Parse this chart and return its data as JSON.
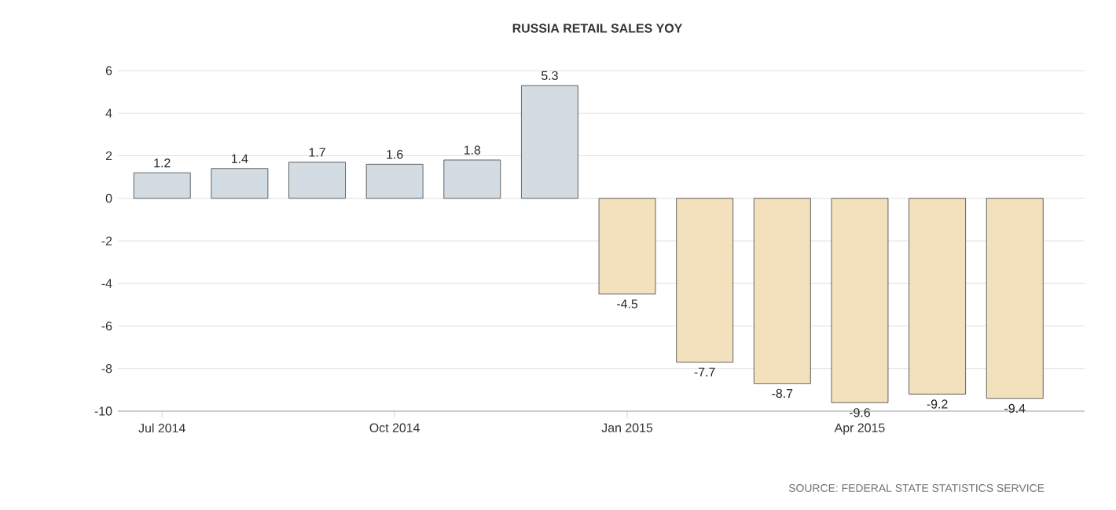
{
  "chart_data": {
    "type": "bar",
    "title": "RUSSIA RETAIL SALES YOY",
    "categories": [
      "Jul 2014",
      null,
      null,
      "Oct 2014",
      null,
      null,
      "Jan 2015",
      null,
      null,
      "Apr 2015",
      null,
      null
    ],
    "values": [
      1.2,
      1.4,
      1.7,
      1.6,
      1.8,
      5.3,
      -4.5,
      -7.7,
      -8.7,
      -9.6,
      -9.2,
      -9.4
    ],
    "colors": [
      "#d3dbe3",
      "#d3dbe3",
      "#d3dbe3",
      "#d3dbe3",
      "#d3dbe3",
      "#d3dbe3",
      "#f3e0bd",
      "#f3e0bd",
      "#f3e0bd",
      "#f3e0bd",
      "#f3e0bd",
      "#f3e0bd"
    ],
    "ylim": [
      -10,
      6
    ],
    "yticks": [
      -10,
      -8,
      -6,
      -4,
      -2,
      0,
      2,
      4,
      6
    ],
    "grid": "y",
    "value_labels": [
      "1.2",
      "1.4",
      "1.7",
      "1.6",
      "1.8",
      "5.3",
      "-4.5",
      "-7.7",
      "-8.7",
      "-9.6",
      "-9.2",
      "-9.4"
    ],
    "annotations": [
      "SOURCE: FEDERAL STATE STATISTICS SERVICE"
    ]
  }
}
